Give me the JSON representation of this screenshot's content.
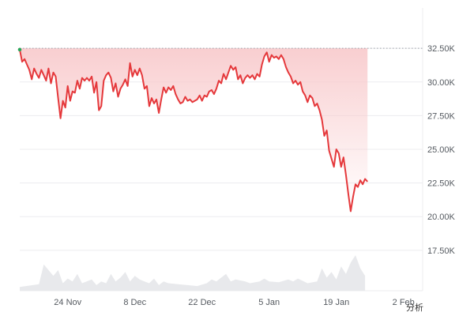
{
  "chart_data": {
    "type": "area",
    "title": "",
    "xlabel": "",
    "ylabel": "",
    "ylim": [
      14500,
      35500
    ],
    "y_ticks": [
      17500,
      20000,
      22500,
      25000,
      27500,
      30000,
      32500
    ],
    "y_tick_labels": [
      "17.50K",
      "20.00K",
      "22.50K",
      "25.00K",
      "27.50K",
      "30.00K",
      "32.50K"
    ],
    "x_range": [
      0,
      84
    ],
    "x_ticks": [
      10,
      24,
      38,
      52,
      66,
      80
    ],
    "x_tick_labels": [
      "24 Nov",
      "8 Dec",
      "22 Dec",
      "5 Jan",
      "19 Jan",
      "2 Feb"
    ],
    "reference_line": 32500,
    "grid": true,
    "legend": "none",
    "colors": {
      "line": "#e5383b",
      "fill": "#f8c9cb",
      "marker_start": "#e5383b",
      "marker_peak": "#1faa5a",
      "volume": "#e8e9ec"
    },
    "series": [
      {
        "values": [
          [
            0,
            32400
          ],
          [
            0.5,
            31500
          ],
          [
            1,
            31700
          ],
          [
            1.5,
            31300
          ],
          [
            2,
            30900
          ],
          [
            2.5,
            30200
          ],
          [
            3,
            31000
          ],
          [
            3.5,
            30600
          ],
          [
            4,
            30300
          ],
          [
            4.5,
            30900
          ],
          [
            5,
            30500
          ],
          [
            5.5,
            30100
          ],
          [
            6,
            31000
          ],
          [
            6.5,
            29900
          ],
          [
            7,
            30700
          ],
          [
            7.5,
            30400
          ],
          [
            8,
            28800
          ],
          [
            8.5,
            27300
          ],
          [
            9,
            28600
          ],
          [
            9.5,
            28100
          ],
          [
            10,
            29700
          ],
          [
            10.5,
            28600
          ],
          [
            11,
            29300
          ],
          [
            11.5,
            29200
          ],
          [
            12,
            30100
          ],
          [
            12.5,
            29500
          ],
          [
            13,
            30300
          ],
          [
            13.5,
            30100
          ],
          [
            14,
            30300
          ],
          [
            14.5,
            30100
          ],
          [
            15,
            30400
          ],
          [
            15.5,
            29200
          ],
          [
            16,
            30000
          ],
          [
            16.5,
            27900
          ],
          [
            17,
            28200
          ],
          [
            17.5,
            30100
          ],
          [
            18,
            30500
          ],
          [
            18.5,
            30700
          ],
          [
            19,
            30300
          ],
          [
            19.5,
            29300
          ],
          [
            20,
            29900
          ],
          [
            20.5,
            28900
          ],
          [
            21,
            29500
          ],
          [
            21.5,
            29800
          ],
          [
            22,
            30200
          ],
          [
            22.5,
            29700
          ],
          [
            23,
            31400
          ],
          [
            23.5,
            30400
          ],
          [
            24,
            30900
          ],
          [
            24.5,
            30500
          ],
          [
            25,
            31000
          ],
          [
            25.5,
            30500
          ],
          [
            26,
            29500
          ],
          [
            26.5,
            29700
          ],
          [
            27,
            28200
          ],
          [
            27.5,
            28800
          ],
          [
            28,
            28400
          ],
          [
            28.5,
            28700
          ],
          [
            29,
            27700
          ],
          [
            29.5,
            28700
          ],
          [
            30,
            29600
          ],
          [
            30.5,
            29200
          ],
          [
            31,
            29600
          ],
          [
            31.5,
            29400
          ],
          [
            32,
            29700
          ],
          [
            32.5,
            29100
          ],
          [
            33,
            28700
          ],
          [
            33.5,
            28400
          ],
          [
            34,
            28500
          ],
          [
            34.5,
            28900
          ],
          [
            35,
            28600
          ],
          [
            35.5,
            28700
          ],
          [
            36,
            28500
          ],
          [
            37,
            28700
          ],
          [
            37.5,
            29000
          ],
          [
            38,
            28600
          ],
          [
            38.5,
            29000
          ],
          [
            39,
            28900
          ],
          [
            39.5,
            29300
          ],
          [
            40,
            29400
          ],
          [
            40.5,
            29100
          ],
          [
            41,
            29500
          ],
          [
            41.5,
            30100
          ],
          [
            42,
            29900
          ],
          [
            42.5,
            30600
          ],
          [
            43,
            30200
          ],
          [
            43.5,
            30700
          ],
          [
            44,
            31200
          ],
          [
            44.5,
            30900
          ],
          [
            45,
            31100
          ],
          [
            45.5,
            30200
          ],
          [
            46,
            30500
          ],
          [
            46.5,
            29900
          ],
          [
            47,
            30300
          ],
          [
            47.5,
            30500
          ],
          [
            48,
            30300
          ],
          [
            48.5,
            30500
          ],
          [
            49,
            30200
          ],
          [
            49.5,
            30600
          ],
          [
            50,
            30400
          ],
          [
            50.5,
            31300
          ],
          [
            51,
            31900
          ],
          [
            51.5,
            32200
          ],
          [
            52,
            31500
          ],
          [
            52.5,
            32000
          ],
          [
            53,
            31800
          ],
          [
            53.5,
            31900
          ],
          [
            54,
            31700
          ],
          [
            54.5,
            32000
          ],
          [
            55,
            31700
          ],
          [
            55.5,
            31100
          ],
          [
            56,
            30700
          ],
          [
            56.5,
            30400
          ],
          [
            57,
            29900
          ],
          [
            57.5,
            30100
          ],
          [
            58,
            29800
          ],
          [
            58.5,
            30000
          ],
          [
            59,
            29300
          ],
          [
            59.5,
            29000
          ],
          [
            60,
            28500
          ],
          [
            60.5,
            29000
          ],
          [
            61,
            28800
          ],
          [
            61.5,
            28200
          ],
          [
            62,
            28400
          ],
          [
            62.5,
            27900
          ],
          [
            63,
            27200
          ],
          [
            63.5,
            26000
          ],
          [
            64,
            26400
          ],
          [
            64.5,
            24900
          ],
          [
            65,
            24300
          ],
          [
            65.5,
            23700
          ],
          [
            66,
            25000
          ],
          [
            66.5,
            24700
          ],
          [
            67,
            23700
          ],
          [
            67.5,
            24400
          ],
          [
            68,
            23100
          ],
          [
            68.5,
            21700
          ],
          [
            69,
            20400
          ],
          [
            69.5,
            21500
          ],
          [
            70,
            22400
          ],
          [
            70.5,
            22200
          ],
          [
            71,
            22700
          ],
          [
            71.5,
            22400
          ],
          [
            72,
            22800
          ],
          [
            72.5,
            22600
          ]
        ]
      }
    ],
    "volume": [
      [
        0,
        200
      ],
      [
        4,
        350
      ],
      [
        5,
        1400
      ],
      [
        7,
        800
      ],
      [
        8,
        1100
      ],
      [
        9,
        400
      ],
      [
        10,
        650
      ],
      [
        11,
        500
      ],
      [
        12,
        900
      ],
      [
        13,
        400
      ],
      [
        15,
        600
      ],
      [
        16,
        300
      ],
      [
        17,
        500
      ],
      [
        18,
        400
      ],
      [
        19,
        900
      ],
      [
        20,
        500
      ],
      [
        21,
        700
      ],
      [
        22,
        1000
      ],
      [
        23,
        500
      ],
      [
        24,
        800
      ],
      [
        25,
        600
      ],
      [
        26,
        500
      ],
      [
        27,
        400
      ],
      [
        28,
        650
      ],
      [
        29,
        300
      ],
      [
        30,
        500
      ],
      [
        31,
        400
      ],
      [
        33,
        350
      ],
      [
        35,
        300
      ],
      [
        37,
        250
      ],
      [
        39,
        400
      ],
      [
        40,
        600
      ],
      [
        41,
        500
      ],
      [
        42,
        700
      ],
      [
        43,
        900
      ],
      [
        44,
        500
      ],
      [
        45,
        600
      ],
      [
        47,
        500
      ],
      [
        48,
        400
      ],
      [
        50,
        500
      ],
      [
        51,
        650
      ],
      [
        52,
        500
      ],
      [
        54,
        450
      ],
      [
        56,
        600
      ],
      [
        57,
        500
      ],
      [
        58,
        650
      ],
      [
        60,
        400
      ],
      [
        62,
        500
      ],
      [
        63,
        1200
      ],
      [
        64,
        700
      ],
      [
        65,
        1000
      ],
      [
        66,
        600
      ],
      [
        67,
        1300
      ],
      [
        68,
        900
      ],
      [
        69,
        1500
      ],
      [
        70,
        1900
      ],
      [
        71,
        1200
      ],
      [
        72,
        800
      ]
    ]
  },
  "footer": {
    "analytics_label": "分析"
  }
}
